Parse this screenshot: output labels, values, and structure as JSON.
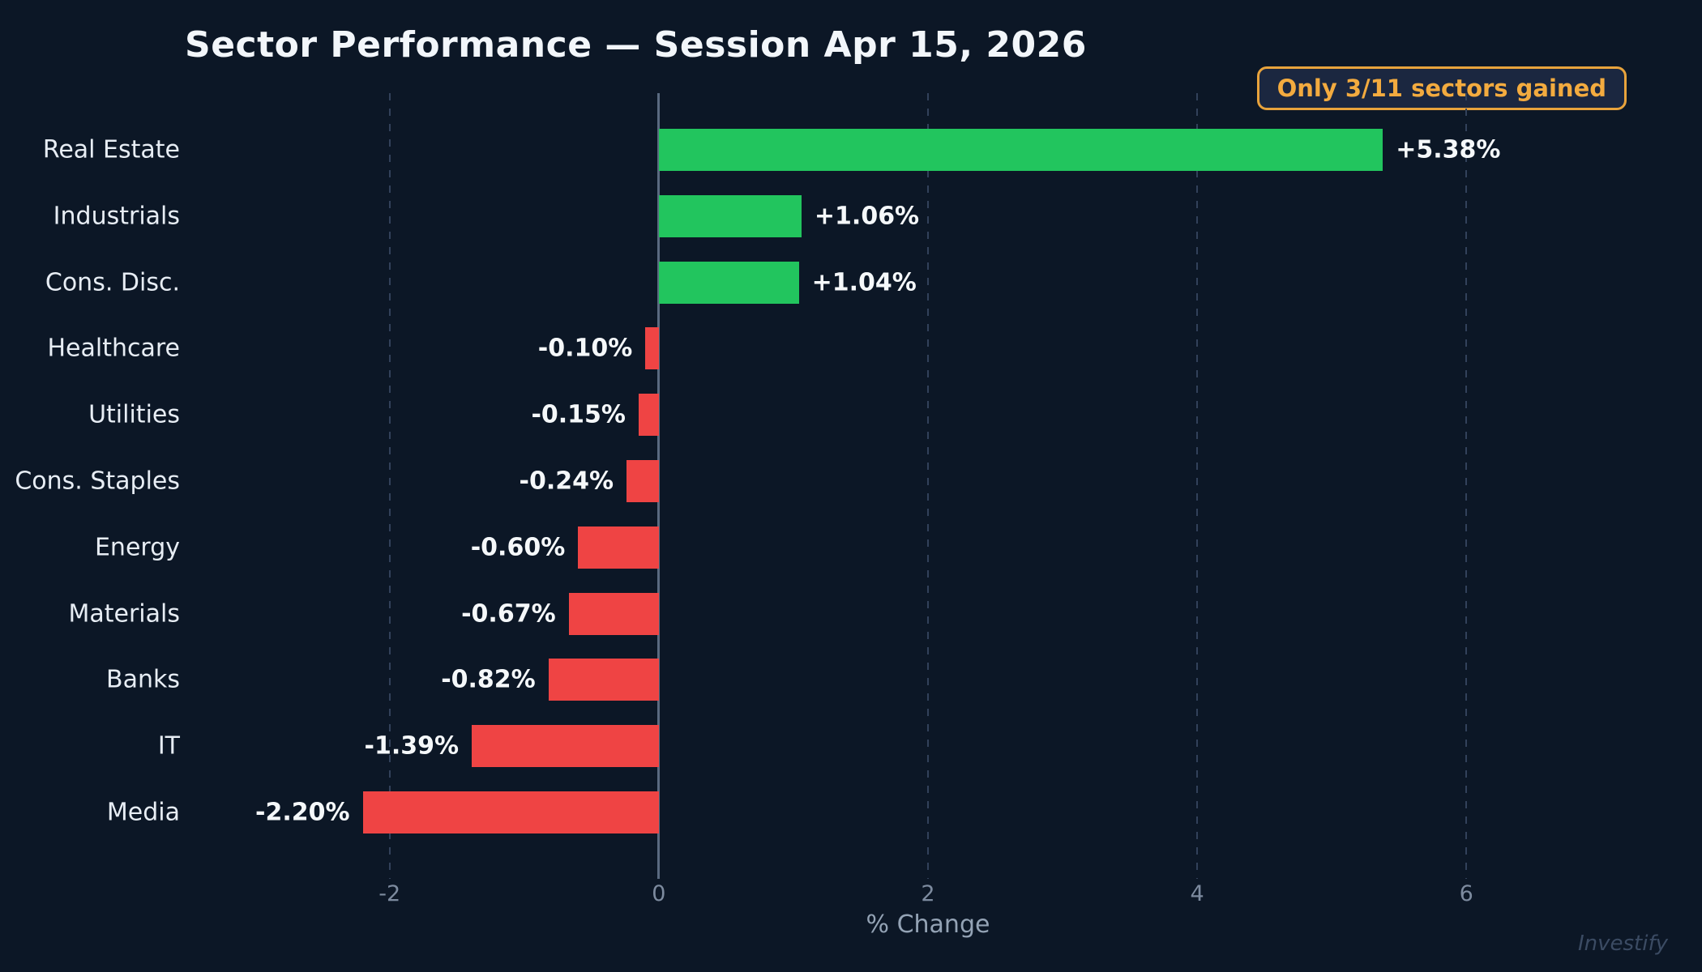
{
  "badge_label": "Only 3/11 sectors gained",
  "watermark": "Investify",
  "colors": {
    "background": "#0c1726",
    "positive_bar": "#22c55e",
    "negative_bar": "#ef4444",
    "badge_accent": "#e8a33c",
    "badge_background": "#1b2740",
    "gridline": "#32415a",
    "zero_line": "#5a6a80",
    "category_text": "#e7edf4",
    "value_text": "#f5f8fa",
    "tick_text": "#7d8b9f",
    "axis_label_text": "#94a3b5",
    "watermark_text": "#3b4b63"
  },
  "chart_data": {
    "type": "bar",
    "orientation": "horizontal",
    "title": "Sector Performance — Session Apr 15, 2026",
    "categories": [
      "Real Estate",
      "Industrials",
      "Cons. Disc.",
      "Healthcare",
      "Utilities",
      "Cons. Staples",
      "Energy",
      "Materials",
      "Banks",
      "IT",
      "Media"
    ],
    "values": [
      5.38,
      1.06,
      1.04,
      -0.1,
      -0.15,
      -0.24,
      -0.6,
      -0.67,
      -0.82,
      -1.39,
      -2.2
    ],
    "value_labels": [
      "+5.38%",
      "+1.06%",
      "+1.04%",
      "-0.10%",
      "-0.15%",
      "-0.24%",
      "-0.60%",
      "-0.67%",
      "-0.82%",
      "-1.39%",
      "-2.20%"
    ],
    "xlabel": "% Change",
    "xlim": [
      -3.45,
      7.45
    ],
    "xticks": [
      -2,
      0,
      2,
      4,
      6
    ],
    "xtick_labels": [
      "-2",
      "0",
      "2",
      "4",
      "6"
    ],
    "grid": "dashed vertical lines at ticks, solid line at zero",
    "legend": "none",
    "bar_color_rule": "green if value >= 0 else red"
  }
}
